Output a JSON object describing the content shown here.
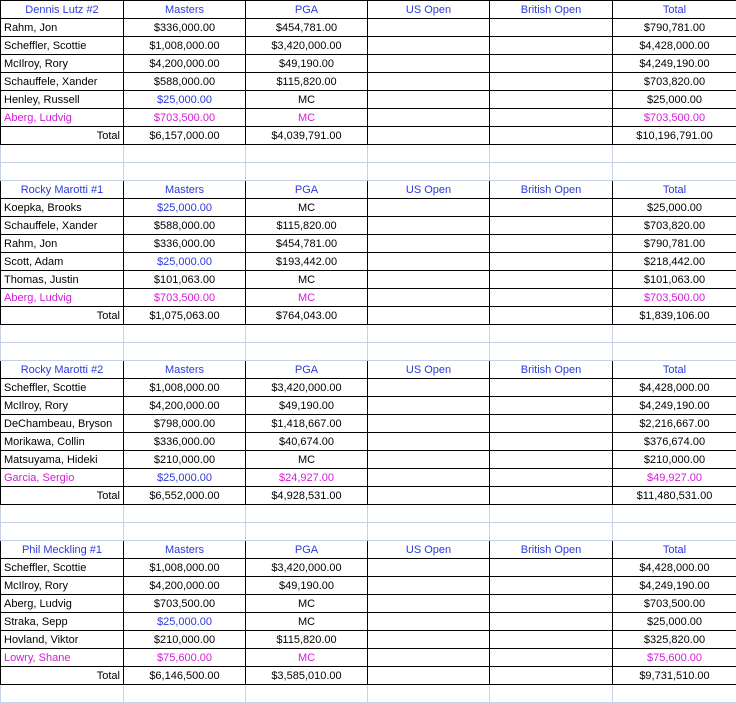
{
  "columns": [
    "Masters",
    "PGA",
    "US Open",
    "British Open",
    "Total"
  ],
  "colors": {
    "header": "#2b3bdc",
    "blue": "#2b3bdc",
    "magenta": "#d61bd8",
    "black": "#000000"
  },
  "teams": [
    {
      "name": "Dennis Lutz #2",
      "rows": [
        {
          "player": "Rahm, Jon",
          "masters": "$336,000.00",
          "pga": "$454,781.00",
          "us": "",
          "british": "",
          "total": "$790,781.00",
          "pc": "black",
          "mc": "black",
          "gc": "black",
          "tc": "black"
        },
        {
          "player": "Scheffler, Scottie",
          "masters": "$1,008,000.00",
          "pga": "$3,420,000.00",
          "us": "",
          "british": "",
          "total": "$4,428,000.00",
          "pc": "black",
          "mc": "black",
          "gc": "black",
          "tc": "black"
        },
        {
          "player": "McIlroy, Rory",
          "masters": "$4,200,000.00",
          "pga": "$49,190.00",
          "us": "",
          "british": "",
          "total": "$4,249,190.00",
          "pc": "black",
          "mc": "black",
          "gc": "black",
          "tc": "black"
        },
        {
          "player": "Schauffele, Xander",
          "masters": "$588,000.00",
          "pga": "$115,820.00",
          "us": "",
          "british": "",
          "total": "$703,820.00",
          "pc": "black",
          "mc": "black",
          "gc": "black",
          "tc": "black"
        },
        {
          "player": "Henley, Russell",
          "masters": "$25,000.00",
          "pga": "MC",
          "us": "",
          "british": "",
          "total": "$25,000.00",
          "pc": "black",
          "mc": "blue",
          "gc": "black",
          "tc": "black"
        },
        {
          "player": "Aberg, Ludvig",
          "masters": "$703,500.00",
          "pga": "MC",
          "us": "",
          "british": "",
          "total": "$703,500.00",
          "pc": "magenta",
          "mc": "magenta",
          "gc": "magenta",
          "tc": "magenta"
        }
      ],
      "total_label": "Total",
      "total_masters": "$6,157,000.00",
      "total_pga": "$4,039,791.00",
      "total_us": "",
      "total_british": "",
      "total_total": "$10,196,791.00"
    },
    {
      "name": "Rocky Marotti #1",
      "rows": [
        {
          "player": "Koepka, Brooks",
          "masters": "$25,000.00",
          "pga": "MC",
          "us": "",
          "british": "",
          "total": "$25,000.00",
          "pc": "black",
          "mc": "blue",
          "gc": "black",
          "tc": "black"
        },
        {
          "player": "Schauffele, Xander",
          "masters": "$588,000.00",
          "pga": "$115,820.00",
          "us": "",
          "british": "",
          "total": "$703,820.00",
          "pc": "black",
          "mc": "black",
          "gc": "black",
          "tc": "black"
        },
        {
          "player": "Rahm, Jon",
          "masters": "$336,000.00",
          "pga": "$454,781.00",
          "us": "",
          "british": "",
          "total": "$790,781.00",
          "pc": "black",
          "mc": "black",
          "gc": "black",
          "tc": "black"
        },
        {
          "player": "Scott, Adam",
          "masters": "$25,000.00",
          "pga": "$193,442.00",
          "us": "",
          "british": "",
          "total": "$218,442.00",
          "pc": "black",
          "mc": "blue",
          "gc": "black",
          "tc": "black"
        },
        {
          "player": "Thomas, Justin",
          "masters": "$101,063.00",
          "pga": "MC",
          "us": "",
          "british": "",
          "total": "$101,063.00",
          "pc": "black",
          "mc": "black",
          "gc": "black",
          "tc": "black"
        },
        {
          "player": "Aberg, Ludvig",
          "masters": "$703,500.00",
          "pga": "MC",
          "us": "",
          "british": "",
          "total": "$703,500.00",
          "pc": "magenta",
          "mc": "magenta",
          "gc": "magenta",
          "tc": "magenta"
        }
      ],
      "total_label": "Total",
      "total_masters": "$1,075,063.00",
      "total_pga": "$764,043.00",
      "total_us": "",
      "total_british": "",
      "total_total": "$1,839,106.00"
    },
    {
      "name": "Rocky Marotti #2",
      "rows": [
        {
          "player": "Scheffler, Scottie",
          "masters": "$1,008,000.00",
          "pga": "$3,420,000.00",
          "us": "",
          "british": "",
          "total": "$4,428,000.00",
          "pc": "black",
          "mc": "black",
          "gc": "black",
          "tc": "black"
        },
        {
          "player": "McIlroy, Rory",
          "masters": "$4,200,000.00",
          "pga": "$49,190.00",
          "us": "",
          "british": "",
          "total": "$4,249,190.00",
          "pc": "black",
          "mc": "black",
          "gc": "black",
          "tc": "black"
        },
        {
          "player": "DeChambeau, Bryson",
          "masters": "$798,000.00",
          "pga": "$1,418,667.00",
          "us": "",
          "british": "",
          "total": "$2,216,667.00",
          "pc": "black",
          "mc": "black",
          "gc": "black",
          "tc": "black"
        },
        {
          "player": "Morikawa, Collin",
          "masters": "$336,000.00",
          "pga": "$40,674.00",
          "us": "",
          "british": "",
          "total": "$376,674.00",
          "pc": "black",
          "mc": "black",
          "gc": "black",
          "tc": "black"
        },
        {
          "player": "Matsuyama, Hideki",
          "masters": "$210,000.00",
          "pga": "MC",
          "us": "",
          "british": "",
          "total": "$210,000.00",
          "pc": "black",
          "mc": "black",
          "gc": "black",
          "tc": "black"
        },
        {
          "player": "Garcia, Sergio",
          "masters": "$25,000.00",
          "pga": "$24,927.00",
          "us": "",
          "british": "",
          "total": "$49,927.00",
          "pc": "magenta",
          "mc": "blue",
          "gc": "magenta",
          "tc": "magenta"
        }
      ],
      "total_label": "Total",
      "total_masters": "$6,552,000.00",
      "total_pga": "$4,928,531.00",
      "total_us": "",
      "total_british": "",
      "total_total": "$11,480,531.00"
    },
    {
      "name": "Phil Meckling #1",
      "rows": [
        {
          "player": "Scheffler, Scottie",
          "masters": "$1,008,000.00",
          "pga": "$3,420,000.00",
          "us": "",
          "british": "",
          "total": "$4,428,000.00",
          "pc": "black",
          "mc": "black",
          "gc": "black",
          "tc": "black"
        },
        {
          "player": "McIlroy, Rory",
          "masters": "$4,200,000.00",
          "pga": "$49,190.00",
          "us": "",
          "british": "",
          "total": "$4,249,190.00",
          "pc": "black",
          "mc": "black",
          "gc": "black",
          "tc": "black"
        },
        {
          "player": "Aberg, Ludvig",
          "masters": "$703,500.00",
          "pga": "MC",
          "us": "",
          "british": "",
          "total": "$703,500.00",
          "pc": "black",
          "mc": "black",
          "gc": "black",
          "tc": "black"
        },
        {
          "player": "Straka, Sepp",
          "masters": "$25,000.00",
          "pga": "MC",
          "us": "",
          "british": "",
          "total": "$25,000.00",
          "pc": "black",
          "mc": "blue",
          "gc": "black",
          "tc": "black"
        },
        {
          "player": "Hovland, Viktor",
          "masters": "$210,000.00",
          "pga": "$115,820.00",
          "us": "",
          "british": "",
          "total": "$325,820.00",
          "pc": "black",
          "mc": "black",
          "gc": "black",
          "tc": "black"
        },
        {
          "player": "Lowry, Shane",
          "masters": "$75,600.00",
          "pga": "MC",
          "us": "",
          "british": "",
          "total": "$75,600.00",
          "pc": "magenta",
          "mc": "magenta",
          "gc": "magenta",
          "tc": "magenta"
        }
      ],
      "total_label": "Total",
      "total_masters": "$6,146,500.00",
      "total_pga": "$3,585,010.00",
      "total_us": "",
      "total_british": "",
      "total_total": "$9,731,510.00"
    }
  ]
}
